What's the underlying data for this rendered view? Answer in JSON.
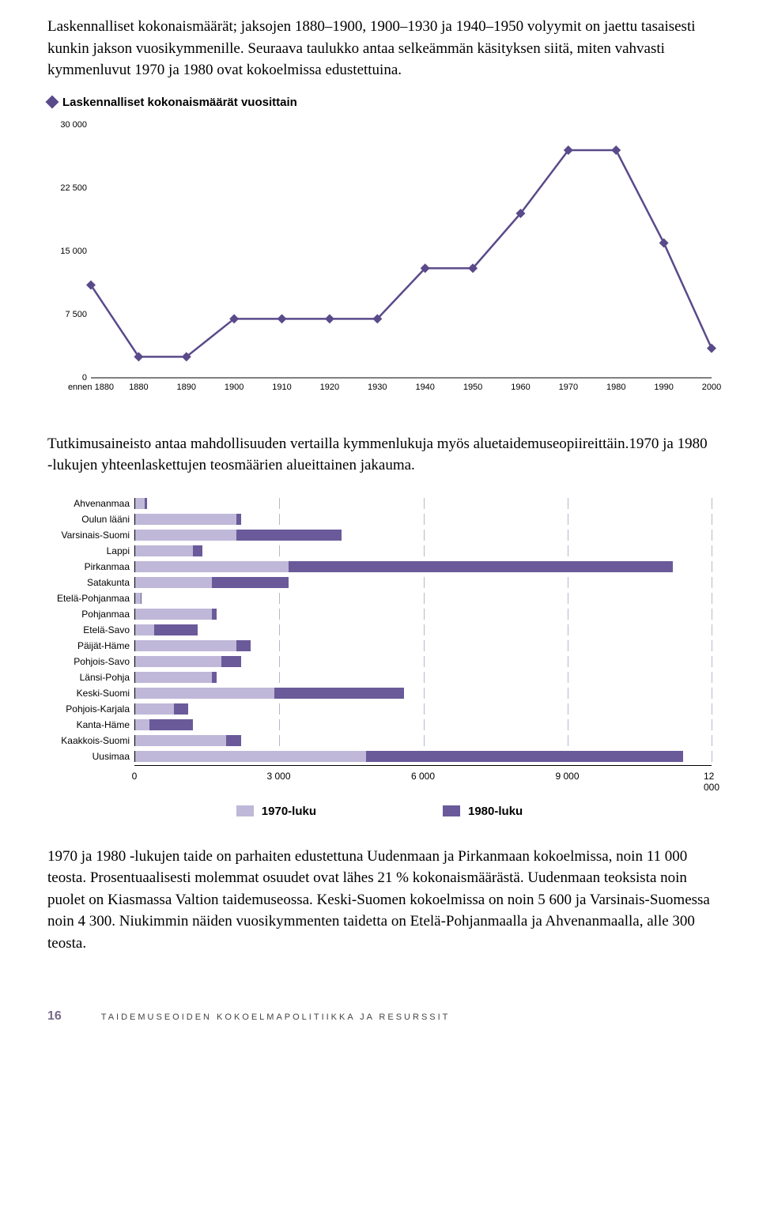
{
  "paragraphs": {
    "p1": "Laskennalliset kokonaismäärät; jaksojen 1880–1900, 1900–1930 ja 1940–1950 volyymit on jaettu tasaisesti kunkin jakson vuosikymmenille. Seuraava taulukko antaa selkeämmän käsityksen siitä, miten vahvasti kymmenluvut 1970 ja 1980 ovat kokoelmissa edustettuina.",
    "p2": "Tutkimusaineisto antaa mahdollisuuden vertailla kymmenlukuja myös aluetaidemuseopiireittäin.1970 ja 1980 -lukujen yhteenlaskettujen teosmäärien alueittainen jakauma.",
    "p3": "1970 ja 1980 -lukujen taide on parhaiten edustettuna Uudenmaan ja Pirkanmaan kokoelmissa, noin 11 000 teosta. Prosentuaalisesti molemmat osuudet ovat lähes 21 % kokonaismäärästä. Uudenmaan teoksista noin puolet on Kiasmassa Valtion taidemuseossa. Keski-Suomen kokoelmissa on noin 5 600 ja Varsinais-Suomessa noin 4 300. Niukimmin näiden vuosikymmenten taidetta on Etelä-Pohjanmaalla ja Ahvenanmaalla, alle 300 teosta."
  },
  "line_chart": {
    "legend_label": "Laskennalliset kokonaismäärät vuosittain",
    "marker_color": "#5a4a8a",
    "line_color": "#5a4a8a",
    "ylim": [
      0,
      30000
    ],
    "yticks": [
      0,
      7500,
      15000,
      22500,
      30000
    ],
    "ytick_labels": [
      "0",
      "7 500",
      "15 000",
      "22 500",
      "30 000"
    ],
    "categories": [
      "ennen 1880",
      "1880",
      "1890",
      "1900",
      "1910",
      "1920",
      "1930",
      "1940",
      "1950",
      "1960",
      "1970",
      "1980",
      "1990",
      "2000"
    ],
    "values": [
      11000,
      2500,
      2500,
      7000,
      7000,
      7000,
      7000,
      13000,
      13000,
      19500,
      27000,
      27000,
      16000,
      3500
    ]
  },
  "bar_chart": {
    "color_1970": "#bfb8d8",
    "color_1980": "#6a5a9a",
    "grid_color": "#b8b8c8",
    "xlim": [
      0,
      12000
    ],
    "xticks": [
      0,
      3000,
      6000,
      9000,
      12000
    ],
    "xtick_labels": [
      "0",
      "3 000",
      "6 000",
      "9 000",
      "12 000"
    ],
    "categories": [
      "Ahvenanmaa",
      "Oulun lääni",
      "Varsinais-Suomi",
      "Lappi",
      "Pirkanmaa",
      "Satakunta",
      "Etelä-Pohjanmaa",
      "Pohjanmaa",
      "Etelä-Savo",
      "Päijät-Häme",
      "Pohjois-Savo",
      "Länsi-Pohja",
      "Keski-Suomi",
      "Pohjois-Karjala",
      "Kanta-Häme",
      "Kaakkois-Suomi",
      "Uusimaa"
    ],
    "values_1970": [
      200,
      2100,
      2100,
      1200,
      3200,
      1600,
      120,
      1600,
      400,
      2100,
      1800,
      1600,
      2900,
      800,
      300,
      1900,
      4800
    ],
    "values_1980": [
      50,
      100,
      2200,
      200,
      8000,
      1600,
      20,
      100,
      900,
      300,
      400,
      100,
      2700,
      300,
      900,
      300,
      6600
    ],
    "legend_1970": "1970-luku",
    "legend_1980": "1980-luku"
  },
  "footer": {
    "page_number": "16",
    "text": "TAIDEMUSEOIDEN KOKOELMAPOLITIIKKA JA RESURSSIT"
  }
}
